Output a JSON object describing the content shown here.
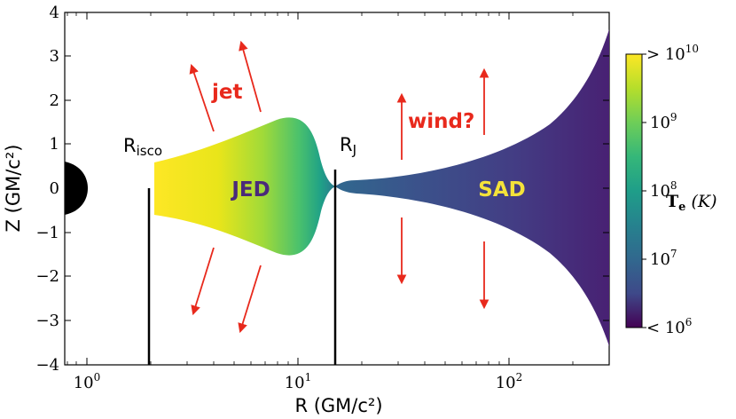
{
  "axes": {
    "xlabel": "R (GM/c²)",
    "ylabel": "Z (GM/c²)",
    "xticks": [
      {
        "base": "10",
        "exp": "0"
      },
      {
        "base": "10",
        "exp": "1"
      },
      {
        "base": "10",
        "exp": "2"
      }
    ],
    "yticks": [
      "−4",
      "−3",
      "−2",
      "−1",
      "0",
      "1",
      "2",
      "3",
      "4"
    ]
  },
  "labels": {
    "risco_main": "R",
    "risco_sub": "isco",
    "rj_main": "R",
    "rj_sub": "J",
    "jet": "jet",
    "wind": "wind?",
    "jed": "JED",
    "sad": "SAD"
  },
  "colorbar": {
    "ticks": [
      {
        "prefix": "> ",
        "base": "10",
        "exp": "10"
      },
      {
        "prefix": "",
        "base": "10",
        "exp": "9"
      },
      {
        "prefix": "",
        "base": "10",
        "exp": "8"
      },
      {
        "prefix": "",
        "base": "10",
        "exp": "7"
      },
      {
        "prefix": "< ",
        "base": "10",
        "exp": "6"
      }
    ],
    "title_bold": "T",
    "title_sub": "e",
    "title_unit": " (K)"
  },
  "colors": {
    "arrow": "#e8291c",
    "jed_text": "#4a2a7a",
    "sad_text": "#f4e23a"
  }
}
